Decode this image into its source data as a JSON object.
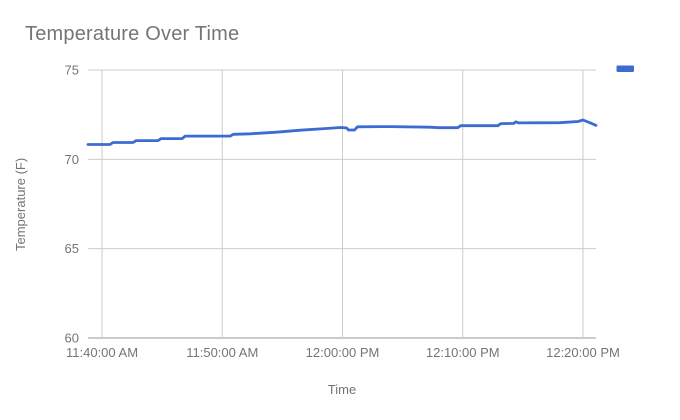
{
  "colors": {
    "series": "#3c6bd2",
    "gridline": "#cccccc",
    "baseline": "#999999",
    "label_text": "#757575",
    "title_text": "#757575",
    "background": "#ffffff"
  },
  "legend": {
    "position": "top-right",
    "swatch_shape": "line-dash",
    "swatch_color": "#3c6bd2",
    "label": ""
  },
  "chart_data": {
    "type": "line",
    "title": "Temperature Over Time",
    "xlabel": "Time",
    "ylabel": "Temperature (F)",
    "ylim": [
      60,
      75
    ],
    "y_ticks": [
      60,
      65,
      70,
      75
    ],
    "x_ticks": [
      "11:40:00 AM",
      "11:50:00 AM",
      "12:00:00 PM",
      "12:10:00 PM",
      "12:20:00 PM"
    ],
    "x_domain": [
      "11:38:50 AM",
      "12:21:05 PM"
    ],
    "grid": true,
    "legend_position": "top-right",
    "series": [
      {
        "name": "",
        "color": "#3c6bd2",
        "points": [
          [
            "11:38:50 AM",
            70.83
          ],
          [
            "11:40:40 AM",
            70.83
          ],
          [
            "11:40:55 AM",
            70.94
          ],
          [
            "11:42:35 AM",
            70.94
          ],
          [
            "11:42:50 AM",
            71.05
          ],
          [
            "11:44:40 AM",
            71.05
          ],
          [
            "11:44:55 AM",
            71.16
          ],
          [
            "11:46:40 AM",
            71.16
          ],
          [
            "11:46:55 AM",
            71.3
          ],
          [
            "11:50:40 AM",
            71.3
          ],
          [
            "11:50:55 AM",
            71.4
          ],
          [
            "11:52:20 AM",
            71.43
          ],
          [
            "11:54:30 AM",
            71.52
          ],
          [
            "11:56:30 AM",
            71.63
          ],
          [
            "11:58:30 AM",
            71.72
          ],
          [
            "11:59:50 AM",
            71.78
          ],
          [
            "12:00:20 PM",
            71.76
          ],
          [
            "12:00:30 PM",
            71.64
          ],
          [
            "12:01:00 PM",
            71.64
          ],
          [
            "12:01:15 PM",
            71.82
          ],
          [
            "12:04:00 PM",
            71.83
          ],
          [
            "12:07:15 PM",
            71.8
          ],
          [
            "12:08:00 PM",
            71.77
          ],
          [
            "12:09:35 PM",
            71.77
          ],
          [
            "12:09:50 PM",
            71.88
          ],
          [
            "12:12:55 PM",
            71.88
          ],
          [
            "12:13:10 PM",
            72.0
          ],
          [
            "12:14:15 PM",
            72.01
          ],
          [
            "12:14:25 PM",
            72.1
          ],
          [
            "12:14:40 PM",
            72.04
          ],
          [
            "12:18:05 PM",
            72.05
          ],
          [
            "12:19:35 PM",
            72.12
          ],
          [
            "12:20:00 PM",
            72.2
          ],
          [
            "12:20:40 PM",
            72.02
          ],
          [
            "12:21:05 PM",
            71.9
          ]
        ]
      }
    ]
  }
}
